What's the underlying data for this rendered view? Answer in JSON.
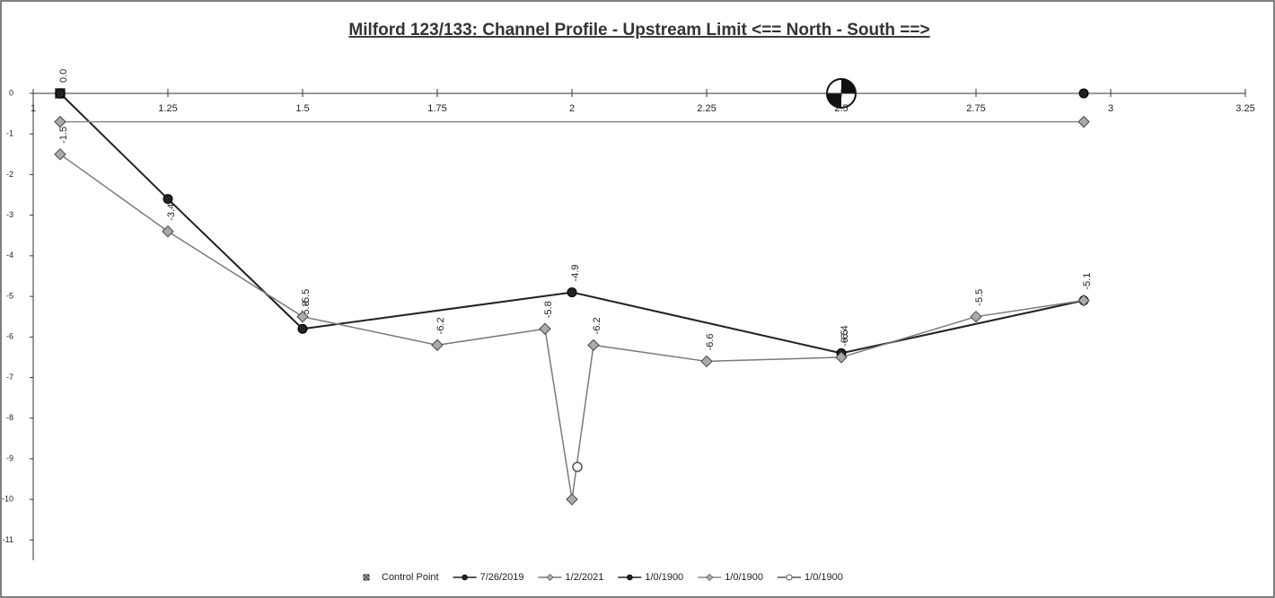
{
  "chart_data": {
    "type": "line",
    "title": "Milford 123/133: Channel Profile - Upstream Limit   <== North - South ==>",
    "xlim": [
      1,
      3.25
    ],
    "xticks": [
      1,
      1.25,
      1.5,
      1.75,
      2,
      2.25,
      2.5,
      2.75,
      3,
      3.25
    ],
    "ylim": [
      -11.5,
      0
    ],
    "yticks": [
      0,
      -1,
      -2,
      -3,
      -4,
      -5,
      -6,
      -7,
      -8,
      -9,
      -10,
      -11
    ],
    "grid": false,
    "legend": "bottom",
    "series": [
      {
        "name": "Control Point",
        "color": "#333333",
        "marker": "square-x",
        "line": false,
        "x": [
          1.05
        ],
        "values": [
          0
        ],
        "value_labels": [
          "0.0"
        ]
      },
      {
        "name": "7/26/2019",
        "color": "#222222",
        "marker": "circle",
        "line": true,
        "x": [
          1.05,
          1.25,
          1.5,
          2,
          2.5,
          2.95
        ],
        "values": [
          0,
          -2.6,
          -5.8,
          -4.9,
          -6.4,
          -5.1
        ],
        "value_labels": [
          null,
          null,
          "-5.8",
          "-4.9",
          "-6.4",
          null
        ]
      },
      {
        "name": "1/2/2021",
        "color": "#7a7a7a",
        "marker": "diamond",
        "line": true,
        "x": [
          1.05,
          1.25,
          1.5,
          1.75,
          1.95,
          2,
          2.04,
          2.25,
          2.5,
          2.75,
          2.95
        ],
        "values": [
          -1.5,
          -3.4,
          -5.5,
          -6.2,
          -5.8,
          -10,
          -6.2,
          -6.6,
          -6.5,
          -5.5,
          -5.1
        ],
        "value_labels": [
          "-1.5",
          "-3.4",
          "-5.5",
          "-6.2",
          "-5.8",
          null,
          "-6.2",
          "-6.6",
          "-6.5",
          "-5.5",
          "-5.1"
        ]
      },
      {
        "name": "1/0/1900",
        "color": "#222222",
        "marker": "circle",
        "line": false,
        "x": [
          2.95
        ],
        "values": [
          0
        ]
      },
      {
        "name": "1/0/1900",
        "color": "#8a8a8a",
        "marker": "diamond",
        "line": true,
        "x": [
          1.05,
          2.95
        ],
        "values": [
          -0.7,
          -0.7
        ]
      },
      {
        "name": "1/0/1900",
        "color": "#555555",
        "marker": "open-circle",
        "line": false,
        "x": [
          2.01
        ],
        "values": [
          -9.2
        ]
      }
    ]
  }
}
